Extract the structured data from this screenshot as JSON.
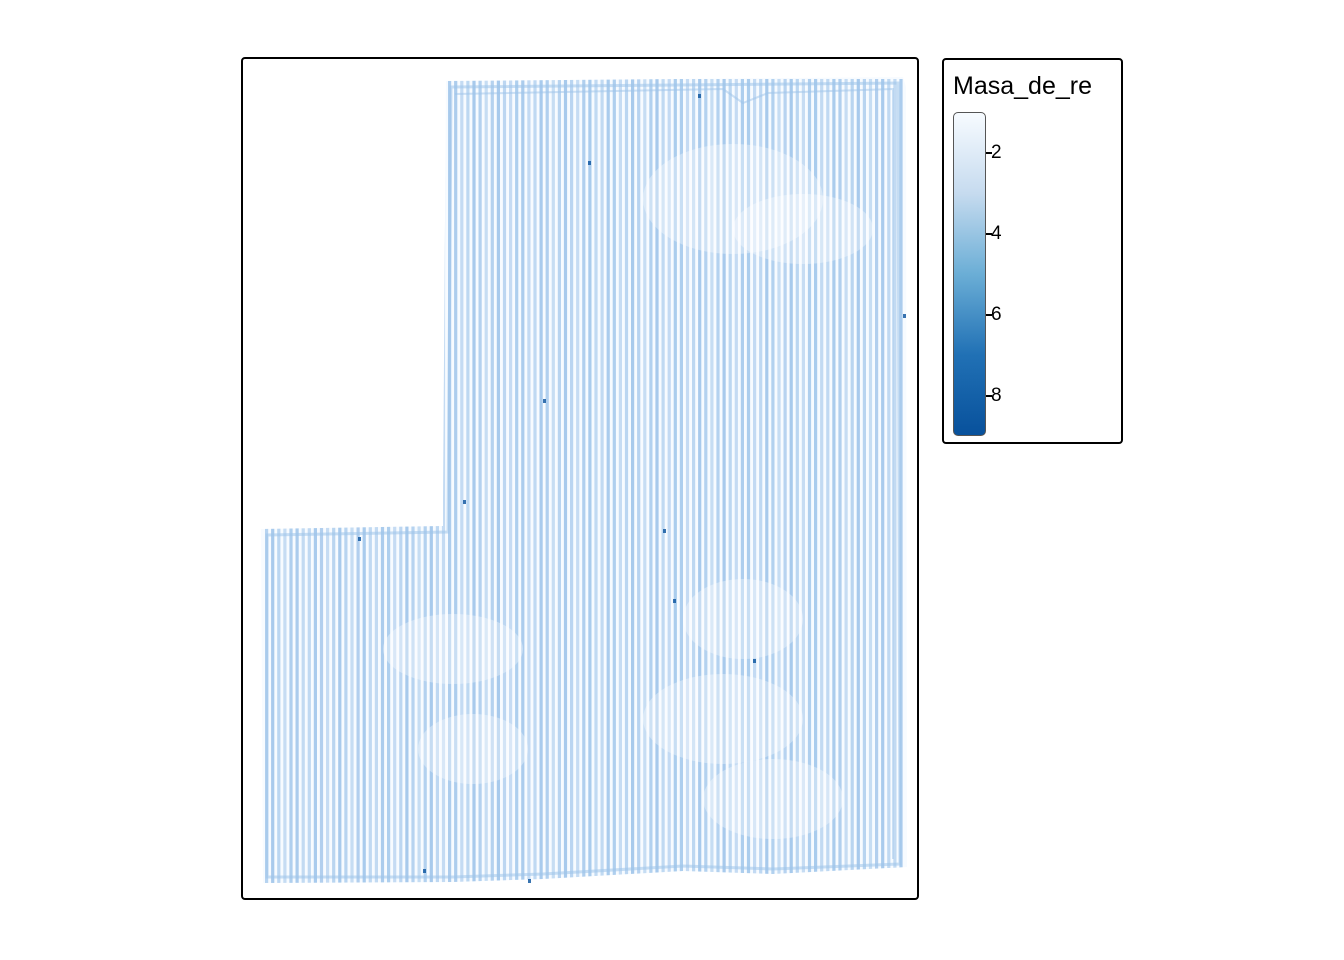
{
  "legend": {
    "title": "Masa_de_re",
    "ticks": [
      {
        "value": 2,
        "label": "2"
      },
      {
        "value": 4,
        "label": "4"
      },
      {
        "value": 6,
        "label": "6"
      },
      {
        "value": 8,
        "label": "8"
      }
    ],
    "value_range": [
      1,
      9
    ],
    "colors": {
      "low": "#f7fbff",
      "mid_low": "#c6dbef",
      "mid": "#6baed6",
      "mid_high": "#2171b5",
      "high": "#08519c"
    }
  },
  "map": {
    "field_color": "#9ec4ea",
    "background": "#ffffff"
  }
}
